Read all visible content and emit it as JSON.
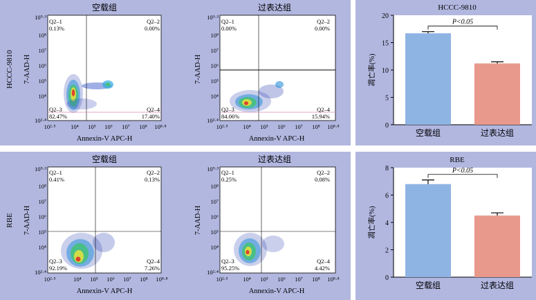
{
  "flow_rows": [
    {
      "row_label": "HCCC-9810",
      "plots": [
        {
          "title": "空载组",
          "q1": "Q2–1",
          "q1v": "0.13%",
          "q2": "Q2–2",
          "q2v": "0.00%",
          "q3": "Q2–3",
          "q3v": "82.47%",
          "q4": "Q2–4",
          "q4v": "17.40%"
        },
        {
          "title": "过表达组",
          "q1": "Q2–1",
          "q1v": "0.00%",
          "q2": "Q2–2",
          "q2v": "0.00%",
          "q3": "Q2–3",
          "q3v": "84.06%",
          "q4": "Q2–4",
          "q4v": "15.94%"
        }
      ]
    },
    {
      "row_label": "RBE",
      "plots": [
        {
          "title": "空载组",
          "q1": "Q2–1",
          "q1v": "0.41%",
          "q2": "Q2–2",
          "q2v": "0.13%",
          "q3": "Q2–3",
          "q3v": "92.19%",
          "q4": "Q2–4",
          "q4v": "7.26%"
        },
        {
          "title": "过表达组",
          "q1": "Q2–1",
          "q1v": "0.25%",
          "q2": "Q2–2",
          "q2v": "0.08%",
          "q3": "Q2–3",
          "q3v": "95.25%",
          "q4": "Q2–4",
          "q4v": "4.42%"
        }
      ]
    }
  ],
  "flow_axes": {
    "xlabel": "Annexin-V APC-H",
    "ylabel": "7-AAD-H",
    "xticks": [
      "10²·⁵",
      "10⁴",
      "10⁵",
      "10⁶",
      "10⁷",
      "10⁸",
      "10⁸·⁸"
    ],
    "yticks": [
      "10²·⁴",
      "10⁴",
      "10⁵",
      "10⁶",
      "10⁷",
      "10⁸",
      "10⁹·³"
    ]
  },
  "chart_data": [
    {
      "type": "bar",
      "title": "HCCC-9810",
      "categories": [
        "空载组",
        "过表达组"
      ],
      "values": [
        16.7,
        11.2
      ],
      "errors": [
        0.3,
        0.3
      ],
      "colors": [
        "#8eb4e3",
        "#e8998b"
      ],
      "ylabel": "凋亡率(%)",
      "ylim": [
        0,
        20
      ],
      "yticks": [
        0,
        5,
        10,
        15,
        20
      ],
      "annotation": "P<0.05"
    },
    {
      "type": "bar",
      "title": "RBE",
      "categories": [
        "空载组",
        "过表达组"
      ],
      "values": [
        6.8,
        4.5
      ],
      "errors": [
        0.3,
        0.2
      ],
      "colors": [
        "#8eb4e3",
        "#e8998b"
      ],
      "ylabel": "凋亡率(%)",
      "ylim": [
        0,
        8
      ],
      "yticks": [
        0,
        2,
        4,
        6,
        8
      ],
      "annotation": "P<0.05"
    }
  ]
}
